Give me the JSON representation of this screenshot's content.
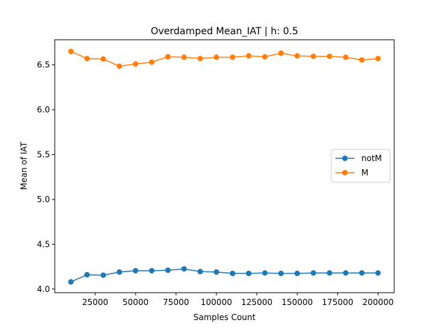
{
  "chart_data": {
    "type": "line",
    "title": "Overdamped Mean_IAT   | h: 0.5",
    "xlabel": "Samples Count",
    "ylabel": "Mean of IAT",
    "xlim": [
      0,
      210000
    ],
    "ylim": [
      3.96,
      6.78
    ],
    "xticks": [
      25000,
      50000,
      75000,
      100000,
      125000,
      150000,
      175000,
      200000
    ],
    "yticks": [
      4.0,
      4.5,
      5.0,
      5.5,
      6.0,
      6.5
    ],
    "legend_position": "center-right",
    "grid": false,
    "x": [
      10000,
      20000,
      30000,
      40000,
      50000,
      60000,
      70000,
      80000,
      90000,
      100000,
      110000,
      120000,
      130000,
      140000,
      150000,
      160000,
      170000,
      180000,
      190000,
      200000
    ],
    "series": [
      {
        "name": "notM",
        "color": "#1f77b4",
        "values": [
          4.08,
          4.16,
          4.155,
          4.19,
          4.205,
          4.205,
          4.21,
          4.225,
          4.195,
          4.19,
          4.175,
          4.175,
          4.18,
          4.175,
          4.175,
          4.18,
          4.18,
          4.18,
          4.18,
          4.18
        ]
      },
      {
        "name": "M",
        "color": "#ff7f0e",
        "values": [
          6.65,
          6.57,
          6.565,
          6.485,
          6.51,
          6.53,
          6.59,
          6.585,
          6.57,
          6.585,
          6.585,
          6.6,
          6.59,
          6.63,
          6.6,
          6.595,
          6.595,
          6.585,
          6.555,
          6.57
        ]
      }
    ]
  }
}
